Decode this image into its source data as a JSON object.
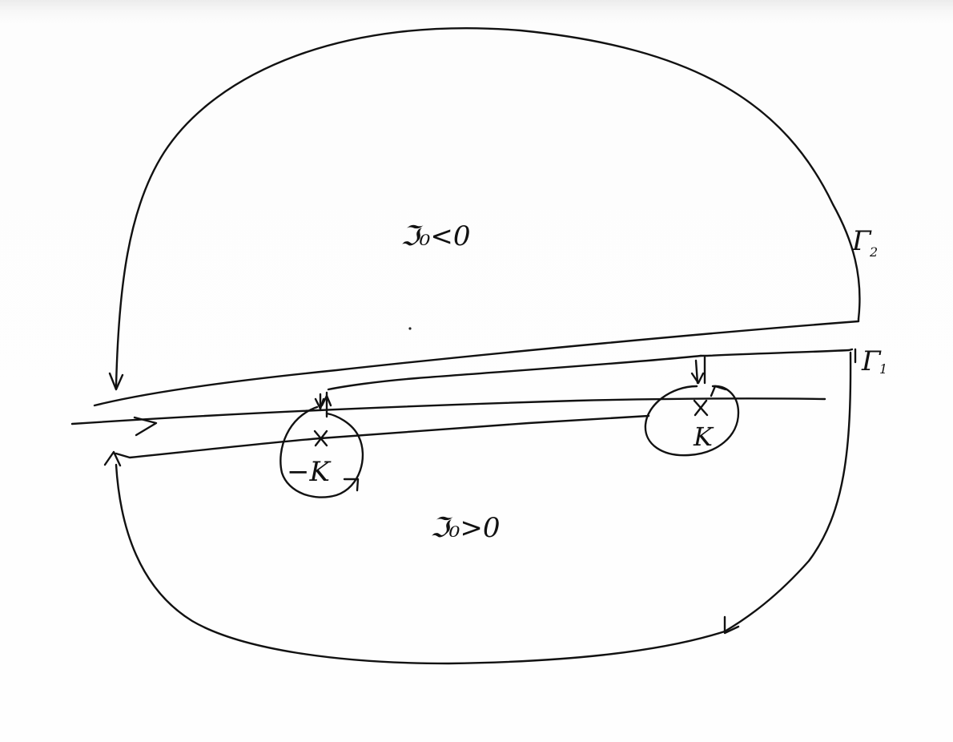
{
  "diagram": {
    "upper_region_label": "ℑ₀<0",
    "lower_region_label": "ℑ₀>0",
    "outer_contour_label": "Γ",
    "outer_contour_subscript": "2",
    "inner_contour_label": "Γ",
    "inner_contour_subscript": "1",
    "left_pole_label": "−K",
    "right_pole_label": "K",
    "pole_marker": "×"
  }
}
